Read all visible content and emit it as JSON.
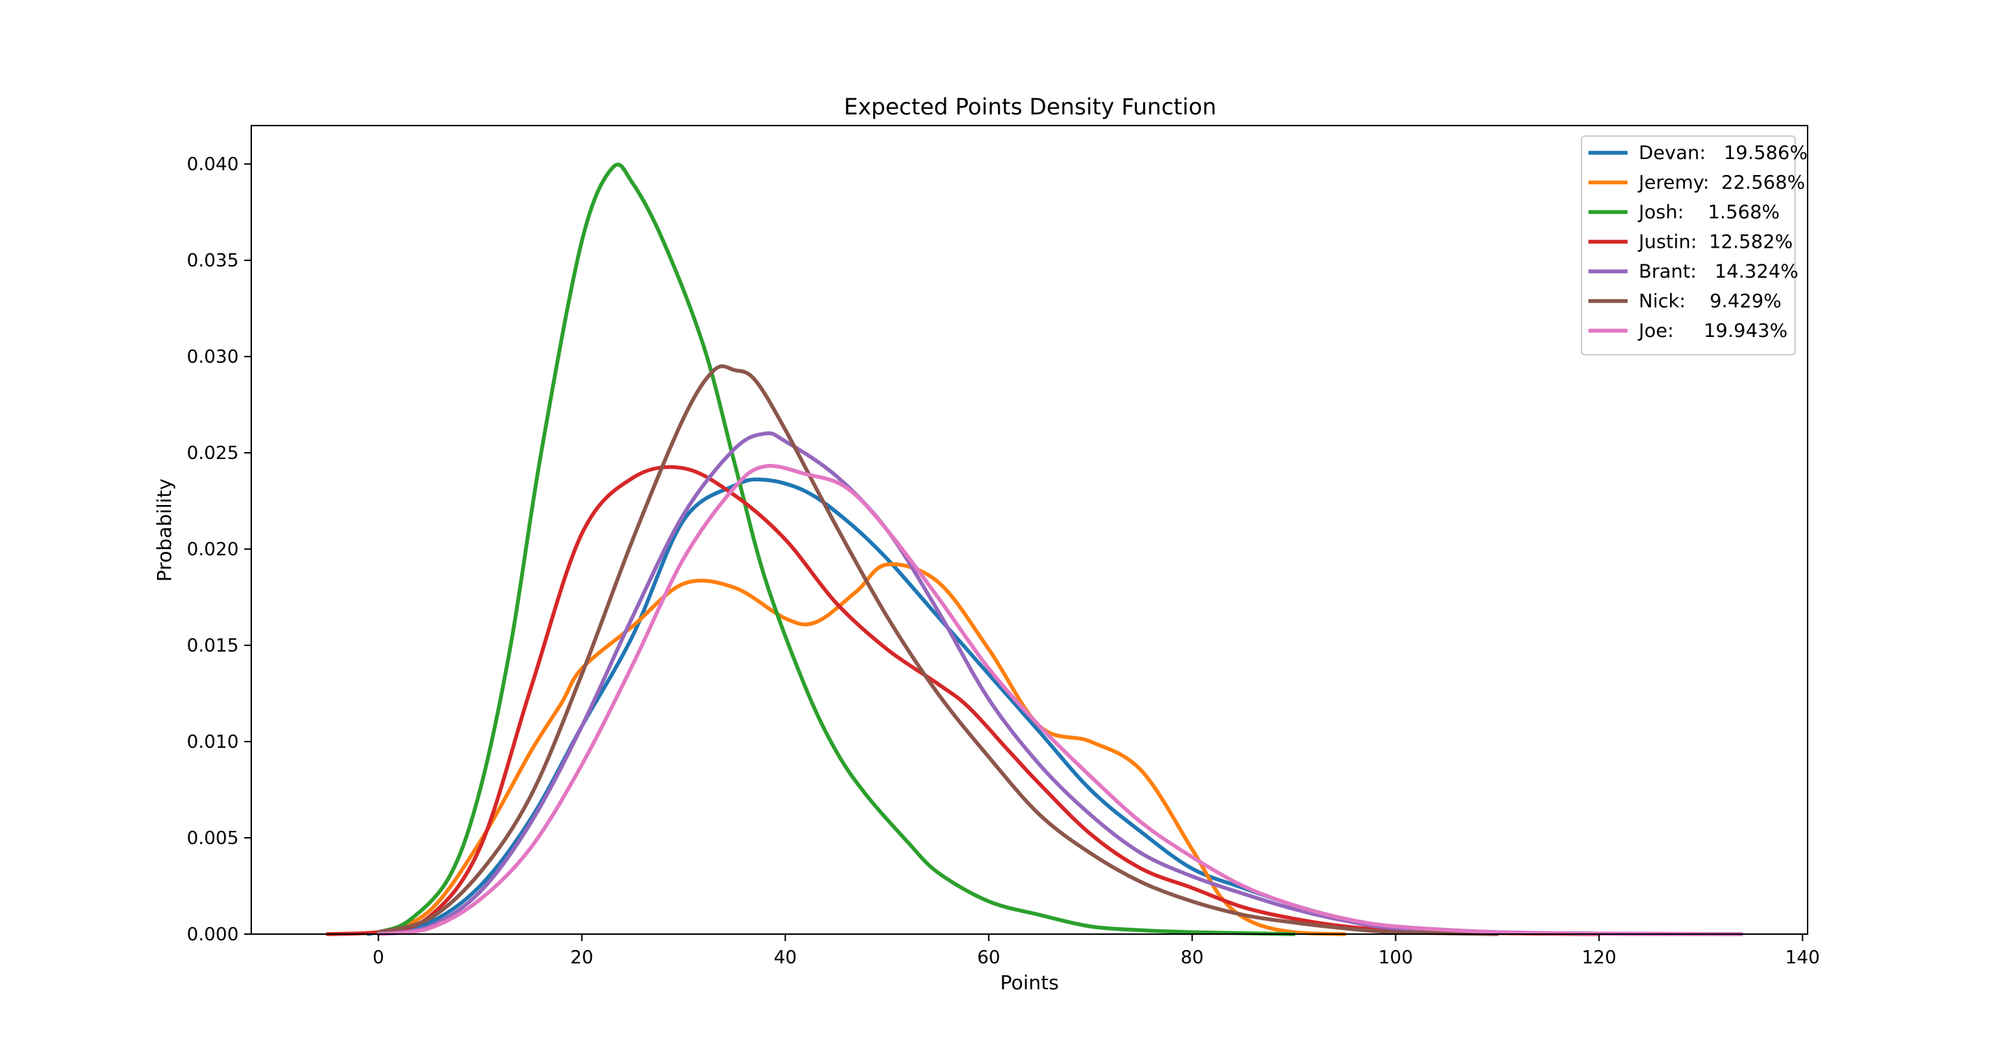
{
  "chart_data": {
    "type": "line",
    "title": "Expected Points Density Function",
    "xlabel": "Points",
    "ylabel": "Probability",
    "xlim": [
      -12.5,
      140.5
    ],
    "ylim": [
      0,
      0.042
    ],
    "xticks": [
      0,
      20,
      40,
      60,
      80,
      100,
      120,
      140
    ],
    "xtick_labels": [
      "0",
      "20",
      "40",
      "60",
      "80",
      "100",
      "120",
      "140"
    ],
    "yticks": [
      0,
      0.005,
      0.01,
      0.015,
      0.02,
      0.025,
      0.03,
      0.035,
      0.04
    ],
    "ytick_labels": [
      "0.000",
      "0.005",
      "0.010",
      "0.015",
      "0.020",
      "0.025",
      "0.030",
      "0.035",
      "0.040"
    ],
    "grid": false,
    "legend_position": "top-right",
    "series": [
      {
        "name": "Devan:   19.586%",
        "color": "#1f77b4",
        "points": [
          [
            -1,
            0
          ],
          [
            0,
            0.0001
          ],
          [
            5,
            0.0006
          ],
          [
            10,
            0.0025
          ],
          [
            15,
            0.006
          ],
          [
            20,
            0.0108
          ],
          [
            25,
            0.0155
          ],
          [
            30,
            0.0215
          ],
          [
            35,
            0.0233
          ],
          [
            38,
            0.0236
          ],
          [
            42,
            0.023
          ],
          [
            46,
            0.0215
          ],
          [
            50,
            0.0195
          ],
          [
            55,
            0.0165
          ],
          [
            60,
            0.0135
          ],
          [
            65,
            0.0105
          ],
          [
            70,
            0.0075
          ],
          [
            75,
            0.0053
          ],
          [
            80,
            0.0034
          ],
          [
            85,
            0.0024
          ],
          [
            90,
            0.0015
          ],
          [
            95,
            0.0008
          ],
          [
            100,
            0.0004
          ],
          [
            110,
            0.0001
          ],
          [
            120,
            3e-05
          ],
          [
            134,
            0
          ]
        ]
      },
      {
        "name": "Jeremy:  22.568%",
        "color": "#ff7f0e",
        "points": [
          [
            -5,
            0
          ],
          [
            0,
            0.0001
          ],
          [
            5,
            0.0012
          ],
          [
            10,
            0.0048
          ],
          [
            15,
            0.0095
          ],
          [
            18,
            0.012
          ],
          [
            20,
            0.0138
          ],
          [
            25,
            0.016
          ],
          [
            30,
            0.0182
          ],
          [
            35,
            0.018
          ],
          [
            40,
            0.0164
          ],
          [
            43,
            0.0162
          ],
          [
            47,
            0.0178
          ],
          [
            50,
            0.0192
          ],
          [
            55,
            0.0183
          ],
          [
            60,
            0.0148
          ],
          [
            65,
            0.0108
          ],
          [
            70,
            0.01
          ],
          [
            75,
            0.0085
          ],
          [
            80,
            0.0044
          ],
          [
            83,
            0.0018
          ],
          [
            86,
            0.0006
          ],
          [
            90,
            0.0001
          ],
          [
            95,
            0
          ]
        ]
      },
      {
        "name": "Josh:    1.568%",
        "color": "#2ca02c",
        "points": [
          [
            0,
            0.0001
          ],
          [
            3,
            0.0007
          ],
          [
            7,
            0.003
          ],
          [
            10,
            0.0075
          ],
          [
            13,
            0.015
          ],
          [
            16,
            0.025
          ],
          [
            20,
            0.036
          ],
          [
            23,
            0.0398
          ],
          [
            25,
            0.039
          ],
          [
            28,
            0.036
          ],
          [
            32,
            0.0305
          ],
          [
            35,
            0.0245
          ],
          [
            38,
            0.0185
          ],
          [
            42,
            0.0128
          ],
          [
            45,
            0.0095
          ],
          [
            48,
            0.0072
          ],
          [
            52,
            0.0048
          ],
          [
            55,
            0.0032
          ],
          [
            60,
            0.0017
          ],
          [
            65,
            0.001
          ],
          [
            70,
            0.0004
          ],
          [
            75,
            0.0002
          ],
          [
            80,
            0.0001
          ],
          [
            90,
            0
          ]
        ]
      },
      {
        "name": "Justin:  12.582%",
        "color": "#d62728",
        "points": [
          [
            -5,
            0
          ],
          [
            0,
            0.0001
          ],
          [
            5,
            0.0009
          ],
          [
            10,
            0.0045
          ],
          [
            15,
            0.0128
          ],
          [
            20,
            0.0208
          ],
          [
            25,
            0.0237
          ],
          [
            30,
            0.0242
          ],
          [
            35,
            0.0228
          ],
          [
            40,
            0.0205
          ],
          [
            45,
            0.0172
          ],
          [
            50,
            0.0148
          ],
          [
            55,
            0.013
          ],
          [
            58,
            0.0118
          ],
          [
            62,
            0.0095
          ],
          [
            65,
            0.0078
          ],
          [
            70,
            0.0052
          ],
          [
            75,
            0.0034
          ],
          [
            80,
            0.0024
          ],
          [
            85,
            0.0014
          ],
          [
            90,
            0.0008
          ],
          [
            95,
            0.0004
          ],
          [
            100,
            0.0002
          ],
          [
            110,
            5e-05
          ],
          [
            120,
            0
          ]
        ]
      },
      {
        "name": "Brant:   14.324%",
        "color": "#9467bd",
        "points": [
          [
            0,
            0
          ],
          [
            5,
            0.0004
          ],
          [
            10,
            0.0022
          ],
          [
            15,
            0.0058
          ],
          [
            20,
            0.0108
          ],
          [
            25,
            0.0165
          ],
          [
            30,
            0.0218
          ],
          [
            35,
            0.0252
          ],
          [
            38,
            0.026
          ],
          [
            40,
            0.0256
          ],
          [
            45,
            0.0238
          ],
          [
            50,
            0.021
          ],
          [
            55,
            0.0168
          ],
          [
            60,
            0.0122
          ],
          [
            65,
            0.0088
          ],
          [
            70,
            0.0062
          ],
          [
            75,
            0.0042
          ],
          [
            80,
            0.003
          ],
          [
            85,
            0.0021
          ],
          [
            90,
            0.0013
          ],
          [
            95,
            0.0007
          ],
          [
            100,
            0.0003
          ],
          [
            110,
            0.0001
          ],
          [
            120,
            2e-05
          ],
          [
            130,
            0
          ]
        ]
      },
      {
        "name": "Nick:    9.429%",
        "color": "#8c564b",
        "points": [
          [
            0,
            0.0001
          ],
          [
            5,
            0.0008
          ],
          [
            10,
            0.0032
          ],
          [
            15,
            0.0072
          ],
          [
            20,
            0.0135
          ],
          [
            25,
            0.0205
          ],
          [
            30,
            0.0268
          ],
          [
            33,
            0.0293
          ],
          [
            35,
            0.0293
          ],
          [
            37,
            0.0288
          ],
          [
            40,
            0.0262
          ],
          [
            45,
            0.0212
          ],
          [
            50,
            0.0165
          ],
          [
            55,
            0.0125
          ],
          [
            60,
            0.0092
          ],
          [
            65,
            0.0062
          ],
          [
            70,
            0.0042
          ],
          [
            75,
            0.0027
          ],
          [
            80,
            0.0017
          ],
          [
            85,
            0.001
          ],
          [
            90,
            0.0006
          ],
          [
            95,
            0.0003
          ],
          [
            100,
            0.0001
          ],
          [
            110,
            0
          ]
        ]
      },
      {
        "name": "Joe:     19.943%",
        "color": "#e377c2",
        "points": [
          [
            0,
            0
          ],
          [
            5,
            0.0003
          ],
          [
            10,
            0.0018
          ],
          [
            15,
            0.0045
          ],
          [
            20,
            0.0088
          ],
          [
            25,
            0.014
          ],
          [
            30,
            0.0195
          ],
          [
            35,
            0.0232
          ],
          [
            38,
            0.0243
          ],
          [
            42,
            0.0239
          ],
          [
            46,
            0.0232
          ],
          [
            50,
            0.021
          ],
          [
            55,
            0.0175
          ],
          [
            60,
            0.0138
          ],
          [
            65,
            0.0108
          ],
          [
            70,
            0.0082
          ],
          [
            75,
            0.0058
          ],
          [
            80,
            0.004
          ],
          [
            85,
            0.0025
          ],
          [
            90,
            0.0015
          ],
          [
            95,
            0.0008
          ],
          [
            100,
            0.0004
          ],
          [
            110,
            0.0001
          ],
          [
            120,
            3e-05
          ],
          [
            134,
            0
          ]
        ]
      }
    ]
  }
}
